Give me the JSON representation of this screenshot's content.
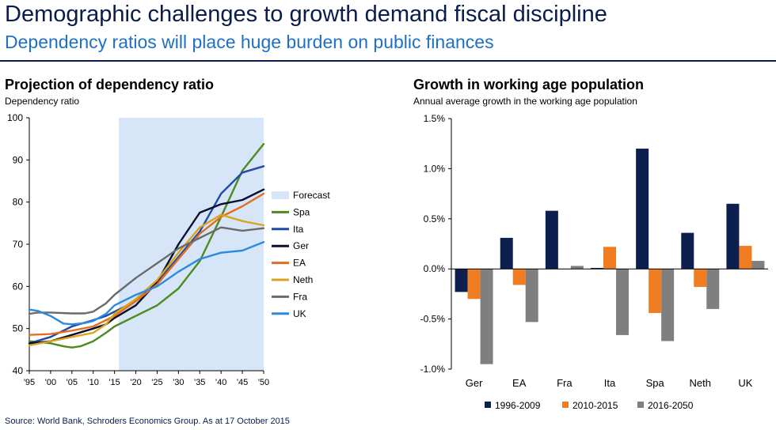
{
  "header": {
    "title": "Demographic challenges to growth demand fiscal discipline",
    "subtitle": "Dependency ratios will place huge burden on public finances"
  },
  "source": "Source: World Bank, Schroders Economics Group. As at 17 October 2015",
  "colors": {
    "title": "#0a1b4d",
    "subtitle": "#1f6fc4",
    "forecast": "#d6e6f8"
  },
  "chart_data": [
    {
      "type": "line",
      "title": "Projection of dependency ratio",
      "ylabel": "Dependency ratio",
      "ylim": [
        40,
        100
      ],
      "yticks": [
        40,
        50,
        60,
        70,
        80,
        90,
        100
      ],
      "xlim": [
        1995,
        2050
      ],
      "xticks": [
        1995,
        2000,
        2005,
        2010,
        2015,
        2020,
        2025,
        2030,
        2035,
        2040,
        2045,
        2050
      ],
      "xticklabels": [
        "'95",
        "'00",
        "'05",
        "'10",
        "'15",
        "'20",
        "'25",
        "'30",
        "'35",
        "'40",
        "'45",
        "'50"
      ],
      "forecast": {
        "label": "Forecast",
        "start": 2016,
        "end": 2050
      },
      "legend_position": "right",
      "series": [
        {
          "name": "Spa",
          "color": "#4e8a1f",
          "x": [
            1995,
            1997,
            2000,
            2003,
            2005,
            2007,
            2010,
            2013,
            2015,
            2020,
            2025,
            2030,
            2035,
            2040,
            2045,
            2050
          ],
          "y": [
            47,
            46.8,
            46.5,
            45.8,
            45.5,
            45.8,
            47,
            49,
            50.5,
            53,
            55.5,
            59.5,
            66,
            76.5,
            87.5,
            93.8
          ]
        },
        {
          "name": "Ita",
          "color": "#1f4aa8",
          "x": [
            1995,
            2000,
            2005,
            2010,
            2013,
            2015,
            2020,
            2025,
            2030,
            2035,
            2040,
            2045,
            2050
          ],
          "y": [
            46.5,
            48,
            50.5,
            52,
            53,
            54,
            56.5,
            61,
            67,
            73,
            82,
            87,
            88.5
          ]
        },
        {
          "name": "Ger",
          "color": "#0a0f2e",
          "x": [
            1995,
            2000,
            2005,
            2010,
            2013,
            2015,
            2020,
            2025,
            2030,
            2035,
            2040,
            2045,
            2050
          ],
          "y": [
            46.5,
            47,
            48.5,
            50,
            51,
            52.5,
            55.5,
            61,
            70,
            77.5,
            79.5,
            80.5,
            83
          ]
        },
        {
          "name": "EA",
          "color": "#e06e23",
          "x": [
            1995,
            2000,
            2005,
            2010,
            2013,
            2015,
            2020,
            2025,
            2030,
            2035,
            2040,
            2045,
            2050
          ],
          "y": [
            48.5,
            48.7,
            49.5,
            50.5,
            52,
            53,
            56.5,
            60.5,
            66.5,
            72.5,
            76.5,
            79,
            82
          ]
        },
        {
          "name": "Neth",
          "color": "#d9a520",
          "x": [
            1995,
            2000,
            2005,
            2010,
            2013,
            2015,
            2020,
            2025,
            2030,
            2035,
            2040,
            2045,
            2050
          ],
          "y": [
            46,
            47,
            48,
            49,
            51,
            53.5,
            57,
            61.5,
            68,
            74,
            77,
            75.5,
            74.5
          ]
        },
        {
          "name": "Fra",
          "color": "#6a6a6a",
          "x": [
            1995,
            1997,
            2000,
            2005,
            2008,
            2010,
            2013,
            2015,
            2020,
            2025,
            2030,
            2035,
            2040,
            2045,
            2050
          ],
          "y": [
            53.5,
            53.8,
            53.8,
            53.6,
            53.6,
            54,
            56,
            58,
            62,
            65.5,
            69,
            71.5,
            74,
            73.2,
            73.8
          ]
        },
        {
          "name": "UK",
          "color": "#2b8ae0",
          "x": [
            1995,
            1997,
            2000,
            2003,
            2005,
            2008,
            2010,
            2013,
            2015,
            2020,
            2025,
            2030,
            2035,
            2040,
            2045,
            2050
          ],
          "y": [
            54.5,
            54.2,
            53,
            51.2,
            51,
            51.3,
            51.8,
            53.5,
            55.5,
            58,
            60,
            63.5,
            66.5,
            68,
            68.5,
            70.5
          ]
        }
      ]
    },
    {
      "type": "bar",
      "title": "Growth in working age population",
      "ylabel": "Annual average growth in the working age population",
      "ylim": [
        -1.0,
        1.5
      ],
      "yticks": [
        -1.0,
        -0.5,
        0.0,
        0.5,
        1.0,
        1.5
      ],
      "yticklabels": [
        "-1.0%",
        "-0.5%",
        "0.0%",
        "0.5%",
        "1.0%",
        "1.5%"
      ],
      "categories": [
        "Ger",
        "EA",
        "Fra",
        "Ita",
        "Spa",
        "Neth",
        "UK"
      ],
      "legend_position": "bottom",
      "series": [
        {
          "name": "1996-2009",
          "color": "#0d1f4f",
          "values": [
            -0.23,
            0.31,
            0.58,
            0.01,
            1.2,
            0.36,
            0.65
          ]
        },
        {
          "name": "2010-2015",
          "color": "#f07d22",
          "values": [
            -0.3,
            -0.16,
            0.0,
            0.22,
            -0.44,
            -0.18,
            0.23
          ]
        },
        {
          "name": "2016-2050",
          "color": "#7f7f7f",
          "values": [
            -0.95,
            -0.53,
            0.03,
            -0.66,
            -0.72,
            -0.4,
            0.08
          ]
        }
      ]
    }
  ]
}
